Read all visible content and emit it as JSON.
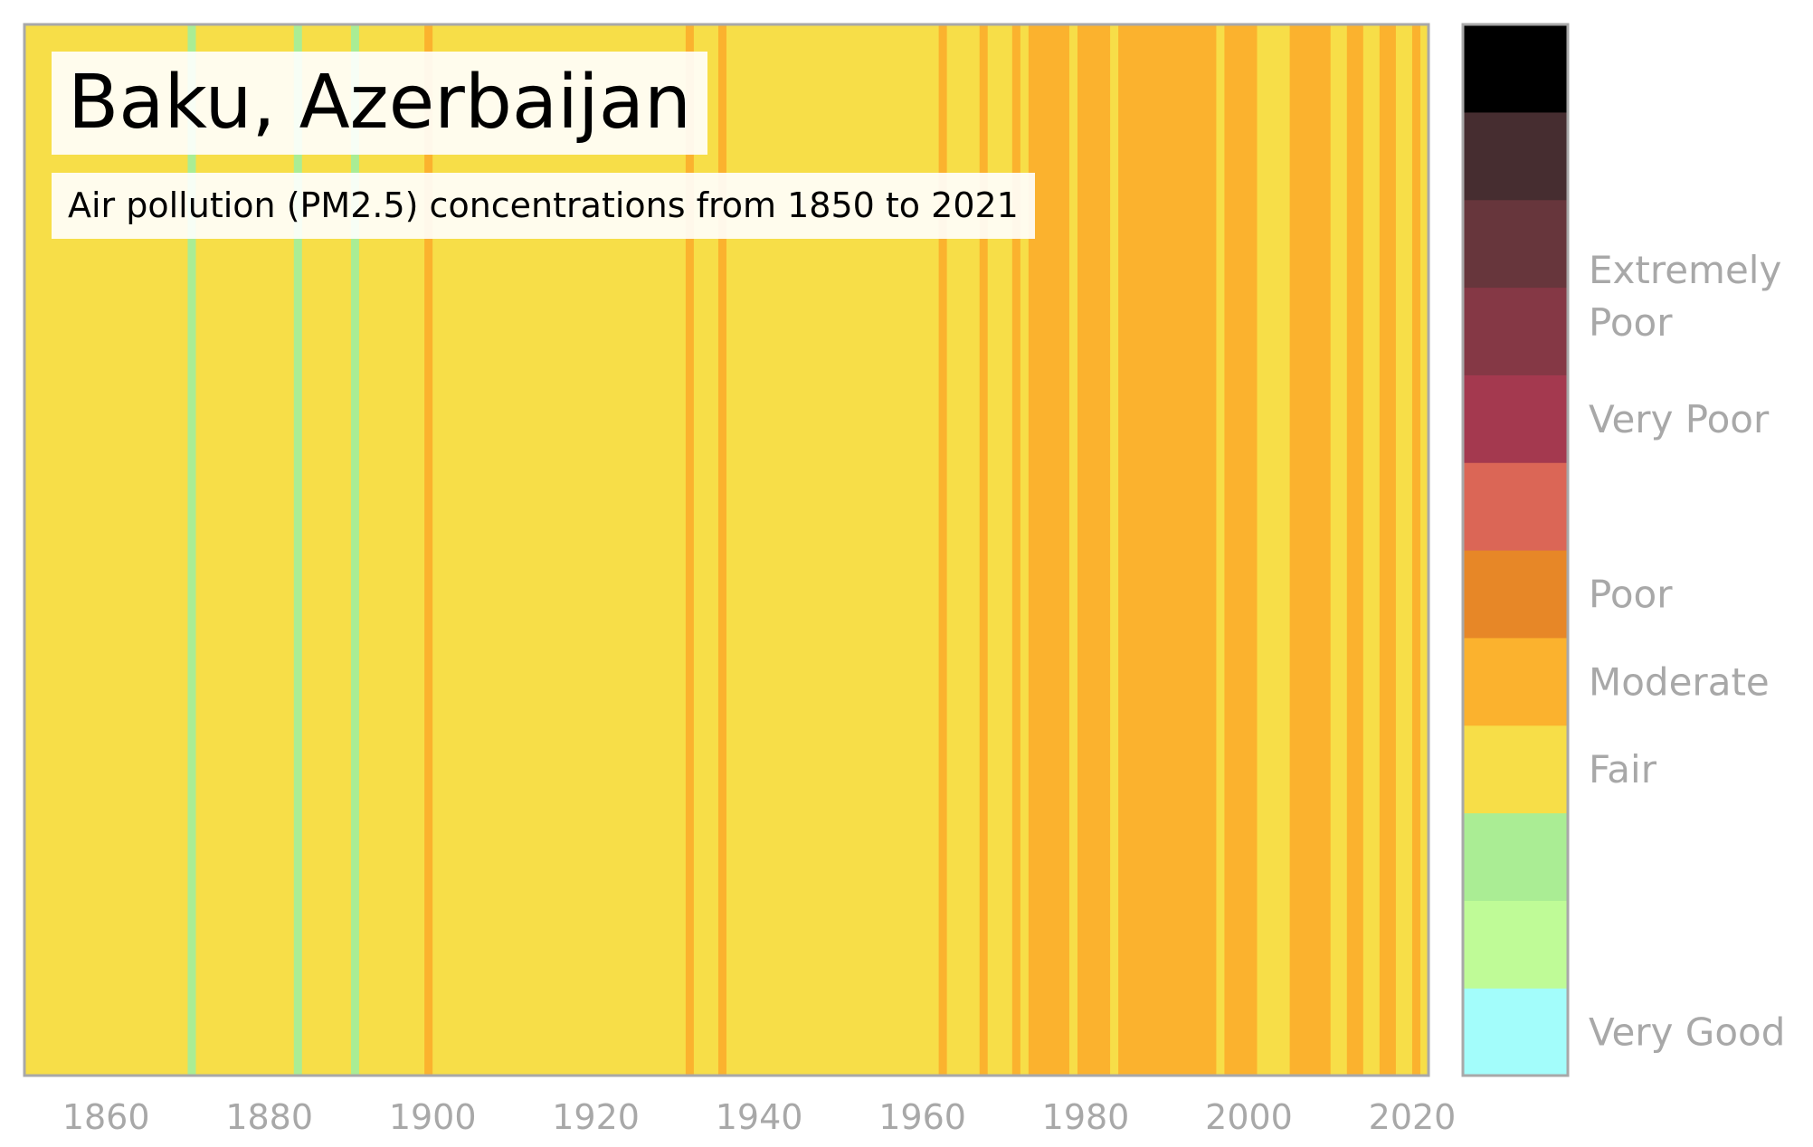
{
  "chart_data": {
    "type": "heatmap",
    "title": "Baku, Azerbaijan",
    "subtitle": "Air pollution (PM2.5) concentrations from 1850 to 2021",
    "x": {
      "start_year": 1850,
      "end_year": 2021
    },
    "xticks": [
      1860,
      1880,
      1900,
      1920,
      1940,
      1960,
      1980,
      2000,
      2020
    ],
    "category_colors": {
      "very_good": "#a3fdfb",
      "good": "#bffb97",
      "fair": "#aaed94",
      "moderate": "#f7de48",
      "poor": "#fbb22e",
      "poor_high": "#e78727",
      "very_poor": "#db6656",
      "very_poor_high": "#a4394f",
      "extremely_poor": "#853845",
      "extremely_poor_2": "#67363c",
      "extremely_poor_3": "#462d30",
      "hazardous": "#000000"
    },
    "stripes": [
      {
        "from": 1850,
        "to": 1870,
        "level": "moderate"
      },
      {
        "from": 1870,
        "to": 1871,
        "level": "fair"
      },
      {
        "from": 1871,
        "to": 1883,
        "level": "moderate"
      },
      {
        "from": 1883,
        "to": 1884,
        "level": "fair"
      },
      {
        "from": 1884,
        "to": 1890,
        "level": "moderate"
      },
      {
        "from": 1890,
        "to": 1891,
        "level": "fair"
      },
      {
        "from": 1891,
        "to": 1899,
        "level": "moderate"
      },
      {
        "from": 1899,
        "to": 1900,
        "level": "poor"
      },
      {
        "from": 1900,
        "to": 1931,
        "level": "moderate"
      },
      {
        "from": 1931,
        "to": 1932,
        "level": "poor"
      },
      {
        "from": 1932,
        "to": 1935,
        "level": "moderate"
      },
      {
        "from": 1935,
        "to": 1936,
        "level": "poor"
      },
      {
        "from": 1936,
        "to": 1962,
        "level": "moderate"
      },
      {
        "from": 1962,
        "to": 1963,
        "level": "poor"
      },
      {
        "from": 1963,
        "to": 1967,
        "level": "moderate"
      },
      {
        "from": 1967,
        "to": 1968,
        "level": "poor"
      },
      {
        "from": 1968,
        "to": 1971,
        "level": "moderate"
      },
      {
        "from": 1971,
        "to": 1972,
        "level": "poor"
      },
      {
        "from": 1972,
        "to": 1973,
        "level": "moderate"
      },
      {
        "from": 1973,
        "to": 1978,
        "level": "poor"
      },
      {
        "from": 1978,
        "to": 1979,
        "level": "moderate"
      },
      {
        "from": 1979,
        "to": 1983,
        "level": "poor"
      },
      {
        "from": 1983,
        "to": 1984,
        "level": "moderate"
      },
      {
        "from": 1984,
        "to": 1996,
        "level": "poor"
      },
      {
        "from": 1996,
        "to": 1997,
        "level": "moderate"
      },
      {
        "from": 1997,
        "to": 2001,
        "level": "poor"
      },
      {
        "from": 2001,
        "to": 2005,
        "level": "moderate"
      },
      {
        "from": 2005,
        "to": 2010,
        "level": "poor"
      },
      {
        "from": 2010,
        "to": 2012,
        "level": "moderate"
      },
      {
        "from": 2012,
        "to": 2014,
        "level": "poor"
      },
      {
        "from": 2014,
        "to": 2016,
        "level": "moderate"
      },
      {
        "from": 2016,
        "to": 2018,
        "level": "poor"
      },
      {
        "from": 2018,
        "to": 2020,
        "level": "moderate"
      },
      {
        "from": 2020,
        "to": 2021,
        "level": "poor"
      },
      {
        "from": 2021,
        "to": 2022,
        "level": "moderate"
      }
    ],
    "colorbar": {
      "colors_bottom_to_top": [
        "#a3fdfb",
        "#bffb97",
        "#aaed94",
        "#f7de48",
        "#fbb22e",
        "#e78727",
        "#db6656",
        "#a4394f",
        "#853845",
        "#67363c",
        "#462d30",
        "#000000"
      ],
      "labels": [
        {
          "text": "Very Good",
          "at_segment": 0.0
        },
        {
          "text": "Fair",
          "at_segment": 3.0
        },
        {
          "text": "Moderate",
          "at_segment": 4.0
        },
        {
          "text": "Poor",
          "at_segment": 5.0
        },
        {
          "text": "Very Poor",
          "at_segment": 7.0
        },
        {
          "text": "Extremely",
          "at_segment": 8.7
        },
        {
          "text": "Poor",
          "at_segment": 8.1
        }
      ]
    }
  },
  "colors": {
    "frame": "#a8a8a8",
    "tick_text": "#a8a8a8"
  }
}
